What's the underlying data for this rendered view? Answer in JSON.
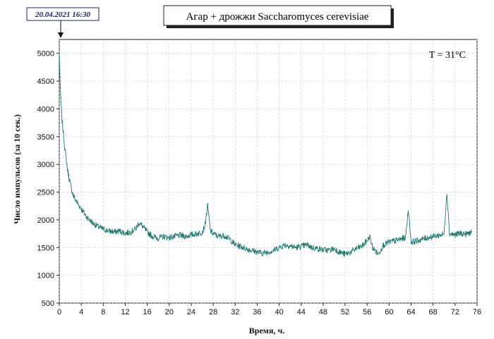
{
  "chart_data": {
    "type": "line",
    "title": "Агар + дрожжи Saccharomyces cerevisiae",
    "timestamp": "20.04.2021 16:30",
    "annotation": "T = 31°C",
    "xlabel": "Время, ч.",
    "ylabel": "Число импульсов (за 10 сек.)",
    "xlim": [
      0,
      76
    ],
    "ylim": [
      500,
      5250
    ],
    "x_ticks": [
      0,
      4,
      8,
      12,
      16,
      20,
      24,
      28,
      32,
      36,
      40,
      44,
      48,
      52,
      56,
      60,
      64,
      68,
      72,
      76
    ],
    "y_ticks": [
      500,
      1000,
      1500,
      2000,
      2500,
      3000,
      3500,
      4000,
      4500,
      5000
    ],
    "grid": true,
    "series": [
      {
        "color": "#1f7a72",
        "x": [
          0,
          0.2,
          0.5,
          1,
          1.5,
          2,
          2.5,
          3,
          4,
          5,
          6,
          7,
          8,
          9,
          10,
          11,
          12,
          13,
          14,
          14.5,
          15,
          16,
          17,
          18,
          19,
          20,
          21,
          22,
          23,
          24,
          25,
          26,
          26.5,
          27,
          27.5,
          28,
          29,
          30,
          31,
          32,
          33,
          34,
          35,
          36,
          37,
          38,
          39,
          40,
          41,
          42,
          43,
          44,
          45,
          46,
          47,
          48,
          49,
          50,
          51,
          52,
          53,
          54,
          55,
          56,
          56.5,
          57,
          58,
          59,
          60,
          61,
          62,
          63,
          63.5,
          64,
          65,
          66,
          67,
          68,
          69,
          70,
          70.5,
          71,
          72,
          73,
          74,
          75
        ],
        "y": [
          5050,
          4300,
          3800,
          3300,
          2900,
          2650,
          2450,
          2350,
          2200,
          2050,
          1950,
          1880,
          1830,
          1800,
          1780,
          1800,
          1760,
          1780,
          1850,
          1950,
          1900,
          1780,
          1700,
          1670,
          1700,
          1680,
          1700,
          1720,
          1700,
          1730,
          1750,
          1780,
          1900,
          2250,
          1800,
          1750,
          1700,
          1720,
          1650,
          1550,
          1520,
          1480,
          1450,
          1420,
          1400,
          1420,
          1450,
          1500,
          1550,
          1530,
          1500,
          1520,
          1550,
          1500,
          1480,
          1460,
          1450,
          1480,
          1420,
          1380,
          1420,
          1480,
          1520,
          1620,
          1700,
          1500,
          1380,
          1550,
          1600,
          1620,
          1650,
          1680,
          2200,
          1600,
          1620,
          1650,
          1680,
          1700,
          1720,
          1740,
          2500,
          1750,
          1730,
          1760,
          1740,
          1780
        ]
      }
    ]
  }
}
